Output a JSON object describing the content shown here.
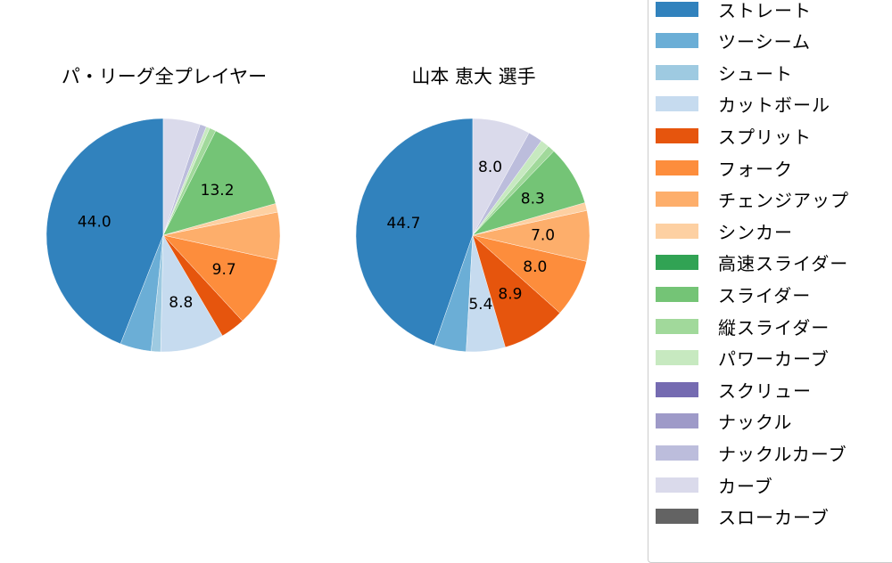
{
  "chart_data": [
    {
      "type": "pie",
      "title": "パ・リーグ全プレイヤー",
      "categories": [
        "ストレート",
        "ツーシーム",
        "シュート",
        "カットボール",
        "スプリット",
        "フォーク",
        "チェンジアップ",
        "シンカー",
        "高速スライダー",
        "スライダー",
        "縦スライダー",
        "パワーカーブ",
        "スクリュー",
        "ナックル",
        "ナックルカーブ",
        "カーブ",
        "スローカーブ"
      ],
      "values": [
        44.0,
        4.3,
        1.3,
        8.8,
        3.4,
        9.7,
        6.6,
        1.2,
        0.0,
        13.2,
        0.9,
        0.5,
        0.0,
        0.0,
        0.9,
        5.1,
        0.0
      ],
      "labeled_values": {
        "ストレート": 44.0,
        "カットボール": 8.8,
        "フォーク": 9.7,
        "スライダー": 13.2
      },
      "start_angle": 90,
      "direction": "counterclockwise"
    },
    {
      "type": "pie",
      "title": "山本 恵大  選手",
      "categories": [
        "ストレート",
        "ツーシーム",
        "シュート",
        "カットボール",
        "スプリット",
        "フォーク",
        "チェンジアップ",
        "シンカー",
        "高速スライダー",
        "スライダー",
        "縦スライダー",
        "パワーカーブ",
        "スクリュー",
        "ナックル",
        "ナックルカーブ",
        "カーブ",
        "スローカーブ"
      ],
      "values": [
        44.7,
        4.4,
        0.0,
        5.4,
        8.9,
        8.0,
        7.0,
        1.1,
        0.0,
        8.3,
        1.0,
        1.2,
        0.0,
        0.0,
        2.0,
        8.0,
        0.0
      ],
      "labeled_values": {
        "ストレート": 44.7,
        "カットボール": 5.4,
        "スプリット": 8.9,
        "フォーク": 8.0,
        "チェンジアップ": 7.0,
        "スライダー": 8.3,
        "カーブ": 8.0
      },
      "start_angle": 90,
      "direction": "counterclockwise"
    }
  ],
  "titles": {
    "left": "パ・リーグ全プレイヤー",
    "right": "山本 恵大  選手"
  },
  "legend": [
    {
      "label": "ストレート",
      "color": "#3182bd"
    },
    {
      "label": "ツーシーム",
      "color": "#6baed6"
    },
    {
      "label": "シュート",
      "color": "#9ecae1"
    },
    {
      "label": "カットボール",
      "color": "#c6dbef"
    },
    {
      "label": "スプリット",
      "color": "#e6550d"
    },
    {
      "label": "フォーク",
      "color": "#fd8d3c"
    },
    {
      "label": "チェンジアップ",
      "color": "#fdae6b"
    },
    {
      "label": "シンカー",
      "color": "#fdd0a2"
    },
    {
      "label": "高速スライダー",
      "color": "#31a354"
    },
    {
      "label": "スライダー",
      "color": "#74c476"
    },
    {
      "label": "縦スライダー",
      "color": "#a1d99b"
    },
    {
      "label": "パワーカーブ",
      "color": "#c7e9c0"
    },
    {
      "label": "スクリュー",
      "color": "#756bb1"
    },
    {
      "label": "ナックル",
      "color": "#9e9ac8"
    },
    {
      "label": "ナックルカーブ",
      "color": "#bcbddc"
    },
    {
      "label": "カーブ",
      "color": "#dadaeb"
    },
    {
      "label": "スローカーブ",
      "color": "#636363"
    }
  ]
}
